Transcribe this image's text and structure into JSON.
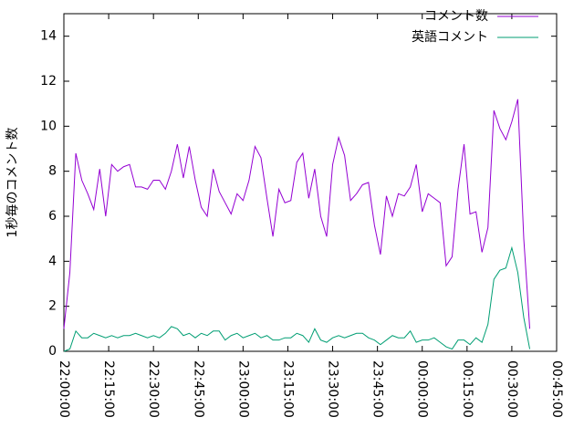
{
  "chart_data": {
    "type": "line",
    "ylabel": "1秒毎のコメント数",
    "x": [
      "22:00:00",
      "22:02:00",
      "22:04:00",
      "22:06:00",
      "22:08:00",
      "22:10:00",
      "22:12:00",
      "22:14:00",
      "22:16:00",
      "22:18:00",
      "22:20:00",
      "22:22:00",
      "22:24:00",
      "22:26:00",
      "22:28:00",
      "22:30:00",
      "22:32:00",
      "22:34:00",
      "22:36:00",
      "22:38:00",
      "22:40:00",
      "22:42:00",
      "22:44:00",
      "22:46:00",
      "22:48:00",
      "22:50:00",
      "22:52:00",
      "22:54:00",
      "22:56:00",
      "22:58:00",
      "23:00:00",
      "23:02:00",
      "23:04:00",
      "23:06:00",
      "23:08:00",
      "23:10:00",
      "23:12:00",
      "23:14:00",
      "23:16:00",
      "23:18:00",
      "23:20:00",
      "23:22:00",
      "23:24:00",
      "23:26:00",
      "23:28:00",
      "23:30:00",
      "23:32:00",
      "23:34:00",
      "23:36:00",
      "23:38:00",
      "23:40:00",
      "23:42:00",
      "23:44:00",
      "23:46:00",
      "23:48:00",
      "23:50:00",
      "23:52:00",
      "23:54:00",
      "23:56:00",
      "23:58:00",
      "00:00:00",
      "00:02:00",
      "00:04:00",
      "00:06:00",
      "00:08:00",
      "00:10:00",
      "00:12:00",
      "00:14:00",
      "00:16:00",
      "00:18:00",
      "00:20:00",
      "00:22:00",
      "00:24:00",
      "00:26:00",
      "00:28:00",
      "00:30:00",
      "00:32:00",
      "00:34:00",
      "00:36:00"
    ],
    "series": [
      {
        "name": "コメント数",
        "color": "#9400d3",
        "values": [
          1.0,
          3.5,
          8.8,
          7.6,
          7.0,
          6.3,
          8.1,
          6.0,
          8.3,
          8.0,
          8.2,
          8.3,
          7.3,
          7.3,
          7.2,
          7.6,
          7.6,
          7.2,
          8.0,
          9.2,
          7.7,
          9.1,
          7.6,
          6.4,
          6.0,
          8.1,
          7.1,
          6.6,
          6.1,
          7.0,
          6.7,
          7.6,
          9.1,
          8.6,
          6.8,
          5.1,
          7.2,
          6.6,
          6.7,
          8.4,
          8.8,
          6.8,
          8.1,
          6.0,
          5.1,
          8.3,
          9.5,
          8.7,
          6.7,
          7.0,
          7.4,
          7.5,
          5.6,
          4.3,
          6.9,
          6.0,
          7.0,
          6.9,
          7.3,
          8.3,
          6.2,
          7.0,
          6.8,
          6.6,
          3.8,
          4.2,
          7.2,
          9.2,
          6.1,
          6.2,
          4.4,
          5.5,
          10.7,
          9.9,
          9.4,
          10.2,
          11.2,
          5.0,
          1.0
        ]
      },
      {
        "name": "英語コメント",
        "color": "#009e73",
        "values": [
          0,
          0.1,
          0.9,
          0.6,
          0.6,
          0.8,
          0.7,
          0.6,
          0.7,
          0.6,
          0.7,
          0.7,
          0.8,
          0.7,
          0.6,
          0.7,
          0.6,
          0.8,
          1.1,
          1.0,
          0.7,
          0.8,
          0.6,
          0.8,
          0.7,
          0.9,
          0.9,
          0.5,
          0.7,
          0.8,
          0.6,
          0.7,
          0.8,
          0.6,
          0.7,
          0.5,
          0.5,
          0.6,
          0.6,
          0.8,
          0.7,
          0.4,
          1.0,
          0.5,
          0.4,
          0.6,
          0.7,
          0.6,
          0.7,
          0.8,
          0.8,
          0.6,
          0.5,
          0.3,
          0.5,
          0.7,
          0.6,
          0.6,
          0.9,
          0.4,
          0.5,
          0.5,
          0.6,
          0.4,
          0.2,
          0.1,
          0.5,
          0.5,
          0.3,
          0.6,
          0.4,
          1.2,
          3.2,
          3.6,
          3.7,
          4.6,
          3.5,
          1.5,
          0.1
        ]
      }
    ],
    "xlim": [
      "22:00:00",
      "00:45:00"
    ],
    "xticks": [
      "22:00:00",
      "22:15:00",
      "22:30:00",
      "22:45:00",
      "23:00:00",
      "23:15:00",
      "23:30:00",
      "23:45:00",
      "00:00:00",
      "00:15:00",
      "00:30:00",
      "00:45:00"
    ],
    "ylim": [
      0,
      15
    ],
    "yticks": [
      0,
      2,
      4,
      6,
      8,
      10,
      12,
      14
    ],
    "legend": "upper right"
  }
}
